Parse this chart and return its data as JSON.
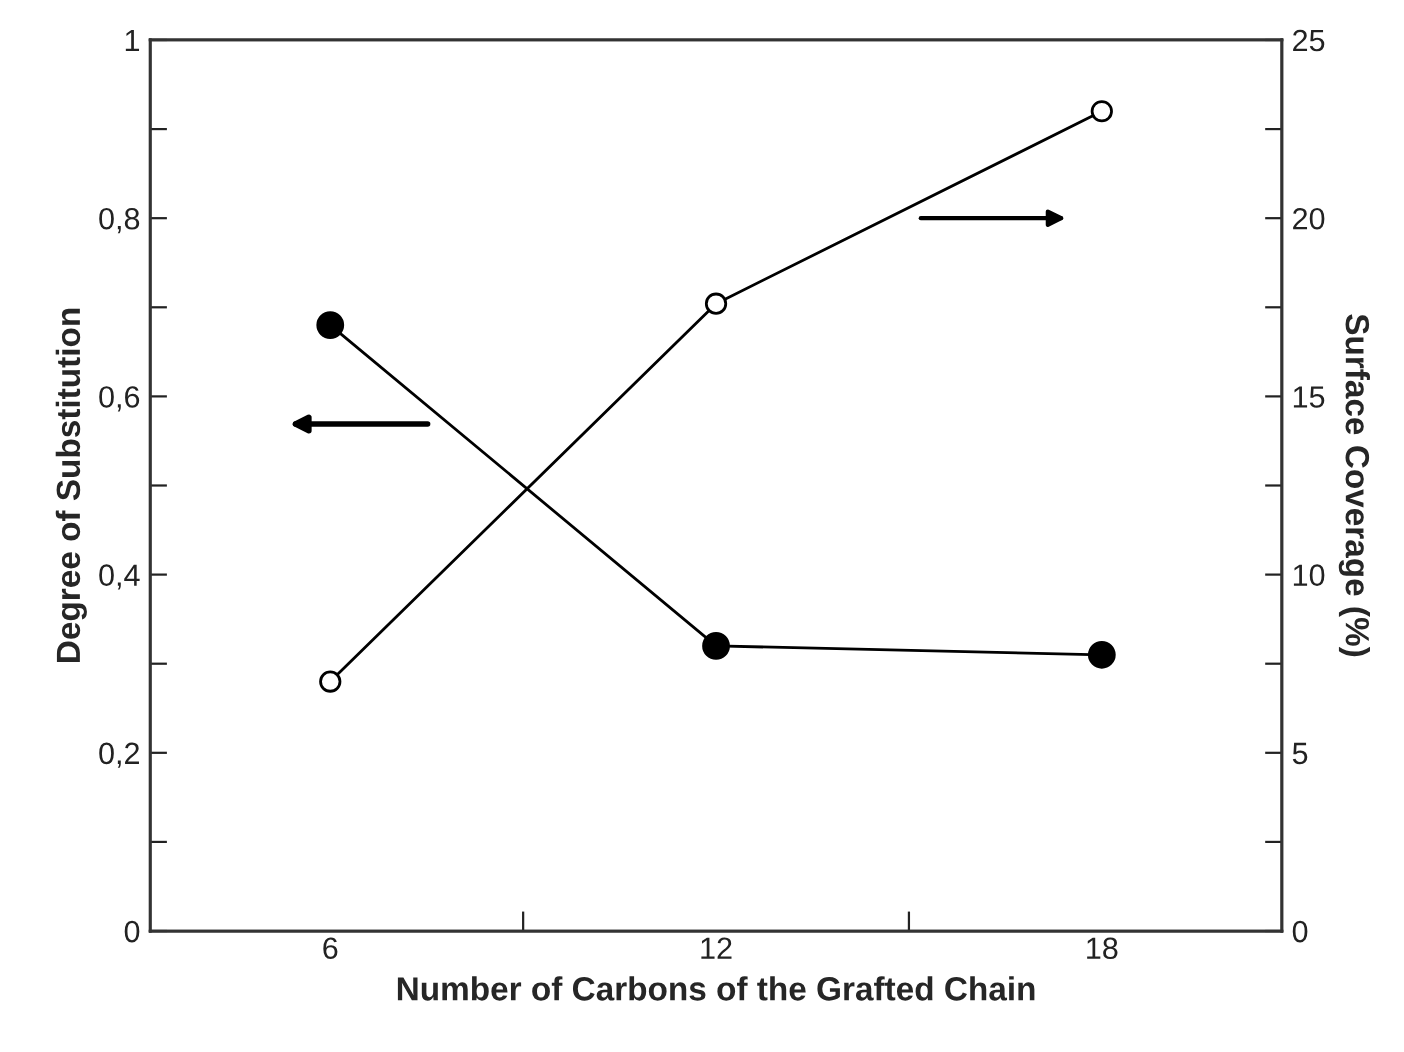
{
  "chart_data": {
    "type": "line",
    "xlabel": "Number of Carbons of the Grafted Chain",
    "ylabel": "Degree of Substitution",
    "y2label": "Surface Coverage (%)",
    "x": [
      6,
      12,
      18
    ],
    "xlim": [
      3.2,
      20.8
    ],
    "xticks": [
      6,
      {
        "value": 9,
        "label": null
      },
      12,
      {
        "value": 15,
        "label": null
      },
      18
    ],
    "ylim": [
      0,
      1
    ],
    "yticks": [
      0,
      {
        "value": 0.1,
        "label": null
      },
      {
        "value": 0.2,
        "label": "0,2"
      },
      {
        "value": 0.3,
        "label": null
      },
      {
        "value": 0.4,
        "label": "0,4"
      },
      {
        "value": 0.5,
        "label": null
      },
      {
        "value": 0.6,
        "label": "0,6"
      },
      {
        "value": 0.7,
        "label": null
      },
      {
        "value": 0.8,
        "label": "0,8"
      },
      {
        "value": 0.9,
        "label": null
      },
      1
    ],
    "y2lim": [
      0,
      25
    ],
    "y2ticks": [
      0,
      {
        "value": 2.5,
        "label": null
      },
      5,
      {
        "value": 7.5,
        "label": null
      },
      10,
      {
        "value": 12.5,
        "label": null
      },
      15,
      {
        "value": 17.5,
        "label": null
      },
      20,
      {
        "value": 22.5,
        "label": null
      },
      25
    ],
    "marker": "circle",
    "line_style": "solid",
    "grid": false,
    "legend": false,
    "series": [
      {
        "color": "#000000",
        "values": [
          0.68,
          0.32,
          0.31
        ]
      },
      {
        "color": "#000000",
        "values": [
          7.0,
          17.6,
          23.0
        ],
        "axis": "y2"
      }
    ]
  }
}
